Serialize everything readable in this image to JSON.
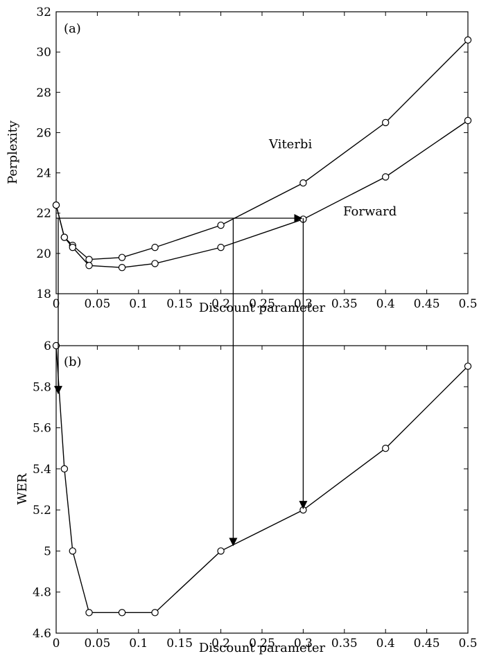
{
  "chart_data": [
    {
      "type": "line",
      "panel_label": "(a)",
      "xlabel": "Discount parameter",
      "ylabel": "Perplexity",
      "xlim": [
        0,
        0.5
      ],
      "ylim": [
        18,
        32
      ],
      "xticks": [
        0,
        0.05,
        0.1,
        0.15,
        0.2,
        0.25,
        0.3,
        0.35,
        0.4,
        0.45,
        0.5
      ],
      "xtick_labels": [
        "0",
        "0.05",
        "0.1",
        "0.15",
        "0.2",
        "0.25",
        "0.3",
        "0.35",
        "0.4",
        "0.45",
        "0.5"
      ],
      "yticks": [
        18,
        20,
        22,
        24,
        26,
        28,
        30,
        32
      ],
      "ytick_labels": [
        "18",
        "20",
        "22",
        "24",
        "26",
        "28",
        "30",
        "32"
      ],
      "series": [
        {
          "name": "Viterbi",
          "x": [
            0,
            0.01,
            0.02,
            0.04,
            0.08,
            0.12,
            0.2,
            0.3,
            0.4,
            0.5
          ],
          "y": [
            22.4,
            20.8,
            20.4,
            19.7,
            19.8,
            20.3,
            21.4,
            23.5,
            26.5,
            30.6
          ]
        },
        {
          "name": "Forward",
          "x": [
            0,
            0.01,
            0.02,
            0.04,
            0.08,
            0.12,
            0.2,
            0.3,
            0.4,
            0.5
          ],
          "y": [
            22.4,
            20.8,
            20.3,
            19.4,
            19.3,
            19.5,
            20.3,
            21.7,
            23.8,
            26.6
          ]
        }
      ],
      "annotations": [
        {
          "text": "Viterbi",
          "x": 0.35,
          "y": 24.8
        },
        {
          "text": "Forward",
          "x": 0.52,
          "y": 21.9
        }
      ],
      "arrows": [
        {
          "from": [
            0,
            21.75
          ],
          "to": [
            0.3,
            21.75
          ]
        }
      ],
      "grid": false,
      "legend": "none"
    },
    {
      "type": "line",
      "panel_label": "(b)",
      "xlabel": "Discount parameter",
      "ylabel": "WER",
      "xlim": [
        0,
        0.5
      ],
      "ylim": [
        4.6,
        6
      ],
      "xticks": [
        0,
        0.05,
        0.1,
        0.15,
        0.2,
        0.25,
        0.3,
        0.35,
        0.4,
        0.45,
        0.5
      ],
      "xtick_labels": [
        "0",
        "0.05",
        "0.1",
        "0.15",
        "0.2",
        "0.25",
        "0.3",
        "0.35",
        "0.4",
        "0.45",
        "0.5"
      ],
      "yticks": [
        4.6,
        4.8,
        5.0,
        5.2,
        5.4,
        5.6,
        5.8,
        6.0
      ],
      "ytick_labels": [
        "4.6",
        "4.8",
        "5",
        "5.2",
        "5.4",
        "5.6",
        "5.8",
        "6"
      ],
      "series": [
        {
          "name": "",
          "x": [
            0,
            0.01,
            0.02,
            0.04,
            0.08,
            0.12,
            0.2,
            0.3,
            0.4,
            0.5
          ],
          "y": [
            6.0,
            5.4,
            5.0,
            4.7,
            4.7,
            4.7,
            5.0,
            5.2,
            5.5,
            5.9
          ]
        }
      ],
      "arrows": [
        {
          "from": [
            0,
            6.0
          ],
          "to": [
            0,
            5.76
          ]
        },
        {
          "from": [
            0.215,
            6.0
          ],
          "to": [
            0.215,
            5.02
          ]
        },
        {
          "from": [
            0.3,
            6.0
          ],
          "to": [
            0.3,
            5.2
          ]
        }
      ],
      "grid": false,
      "legend": "none"
    }
  ],
  "cross_panel_arrows": [
    {
      "x": 0.215,
      "from_panel_a_y": 21.75,
      "to_panel_b_y": 5.02
    },
    {
      "x": 0.3,
      "from_panel_a_y": 21.75,
      "to_panel_b_y": 5.2
    },
    {
      "x": 0.0,
      "from_panel_a_y": 21.75,
      "to_panel_b_y": 5.76
    }
  ],
  "colors": {
    "line": "#000000",
    "marker_fill": "#ffffff",
    "background": "#ffffff"
  }
}
